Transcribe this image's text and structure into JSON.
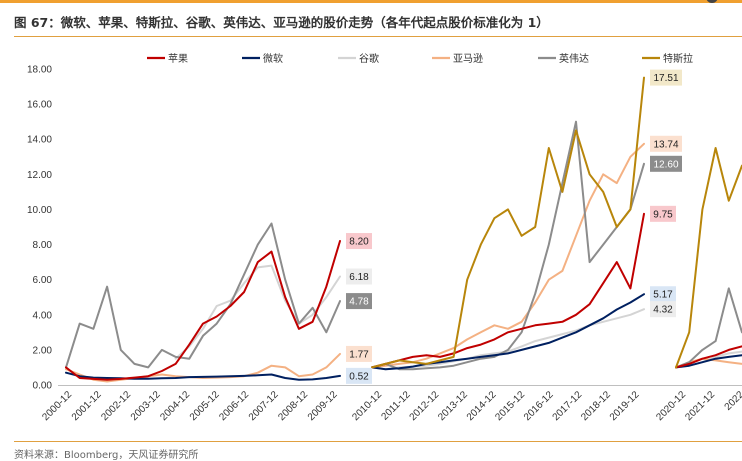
{
  "title": "图 67：微软、苹果、特斯拉、谷歌、英伟达、亚马逊的股价走势（各年代起点股价标准化为 1）",
  "source": "资料来源：Bloomberg，天风证券研究所",
  "colors": {
    "accent": "#f0a030",
    "苹果": "#c00000",
    "微软": "#002060",
    "谷歌": "#d4d4d4",
    "亚马逊": "#f4b183",
    "英伟达": "#8c8c8c",
    "特斯拉": "#b8860b"
  },
  "chart_data": {
    "type": "line",
    "title": "微软、苹果、特斯拉、谷歌、英伟达、亚马逊的股价走势（各年代起点股价标准化为 1）",
    "xlabel": "",
    "ylabel": "",
    "ylim": [
      0,
      18
    ],
    "y_ticks": [
      "18.00",
      "16.00",
      "14.00",
      "12.00",
      "10.00",
      "8.00",
      "6.00",
      "4.00",
      "2.00",
      "0.00"
    ],
    "grid": false,
    "legend_position": "top",
    "legend": [
      "苹果",
      "微软",
      "谷歌",
      "亚马逊",
      "英伟达",
      "特斯拉"
    ],
    "panels": [
      {
        "period": "2000s",
        "x_labels": [
          "2000-12",
          "2001-12",
          "2002-12",
          "2003-12",
          "2004-12",
          "2005-12",
          "2006-12",
          "2007-12",
          "2008-12",
          "2009-12"
        ],
        "series": [
          {
            "name": "苹果",
            "end_label": "8.20",
            "values": [
              1.0,
              0.4,
              0.35,
              0.3,
              0.35,
              0.42,
              0.5,
              0.8,
              1.2,
              2.3,
              3.5,
              3.9,
              4.5,
              5.3,
              7.0,
              7.6,
              5.0,
              3.2,
              3.6,
              5.6,
              8.2
            ]
          },
          {
            "name": "微软",
            "end_label": "0.52",
            "values": [
              0.7,
              0.5,
              0.42,
              0.4,
              0.38,
              0.36,
              0.36,
              0.38,
              0.4,
              0.45,
              0.46,
              0.48,
              0.5,
              0.52,
              0.55,
              0.6,
              0.4,
              0.3,
              0.32,
              0.4,
              0.52
            ]
          },
          {
            "name": "谷歌",
            "end_label": "6.18",
            "values": [
              null,
              null,
              null,
              null,
              null,
              null,
              null,
              null,
              1.5,
              2.2,
              3.2,
              4.5,
              4.8,
              5.8,
              6.7,
              6.8,
              4.8,
              3.5,
              4.0,
              5.0,
              6.18
            ]
          },
          {
            "name": "亚马逊",
            "end_label": "1.77",
            "values": [
              0.9,
              0.6,
              0.3,
              0.2,
              0.3,
              0.4,
              0.5,
              0.6,
              0.5,
              0.45,
              0.4,
              0.42,
              0.45,
              0.5,
              0.7,
              1.1,
              1.0,
              0.5,
              0.6,
              1.0,
              1.77
            ]
          },
          {
            "name": "英伟达",
            "end_label": "4.78",
            "values": [
              1.0,
              3.5,
              3.2,
              5.6,
              2.0,
              1.2,
              1.0,
              2.0,
              1.6,
              1.5,
              2.8,
              3.5,
              4.6,
              6.3,
              8.0,
              9.2,
              6.0,
              3.5,
              4.4,
              3.0,
              4.78
            ]
          }
        ]
      },
      {
        "period": "2010s",
        "x_labels": [
          "2010-12",
          "2011-12",
          "2012-12",
          "2013-12",
          "2014-12",
          "2015-12",
          "2016-12",
          "2017-12",
          "2018-12",
          "2019-12"
        ],
        "series": [
          {
            "name": "苹果",
            "end_label": "9.75",
            "values": [
              1.0,
              1.2,
              1.4,
              1.6,
              1.7,
              1.6,
              1.8,
              2.1,
              2.3,
              2.6,
              3.0,
              3.2,
              3.4,
              3.5,
              3.6,
              4.0,
              4.6,
              5.8,
              7.0,
              5.5,
              9.75
            ]
          },
          {
            "name": "微软",
            "end_label": "5.17",
            "values": [
              1.0,
              0.9,
              0.95,
              1.05,
              1.2,
              1.3,
              1.4,
              1.5,
              1.6,
              1.7,
              1.8,
              2.0,
              2.2,
              2.4,
              2.7,
              3.0,
              3.4,
              3.8,
              4.3,
              4.7,
              5.17
            ]
          },
          {
            "name": "谷歌",
            "end_label": "4.32",
            "values": [
              1.0,
              0.9,
              1.0,
              1.05,
              1.1,
              1.2,
              1.35,
              1.5,
              1.7,
              1.8,
              1.9,
              2.2,
              2.5,
              2.7,
              2.9,
              3.1,
              3.4,
              3.6,
              3.8,
              4.0,
              4.32
            ]
          },
          {
            "name": "亚马逊",
            "end_label": "13.74",
            "values": [
              1.0,
              1.1,
              1.2,
              1.3,
              1.5,
              1.8,
              2.1,
              2.6,
              3.0,
              3.4,
              3.2,
              3.6,
              4.7,
              6.0,
              6.5,
              8.5,
              10.5,
              12.0,
              11.5,
              13.0,
              13.74
            ]
          },
          {
            "name": "英伟达",
            "end_label": "12.60",
            "values": [
              1.0,
              1.2,
              0.9,
              0.9,
              0.95,
              1.0,
              1.1,
              1.3,
              1.5,
              1.6,
              2.0,
              3.0,
              5.2,
              8.0,
              11.5,
              15.0,
              7.0,
              8.0,
              9.0,
              10.0,
              12.6
            ]
          },
          {
            "name": "特斯拉",
            "end_label": "17.51",
            "values": [
              1.0,
              1.2,
              1.4,
              1.3,
              1.2,
              1.4,
              1.6,
              6.0,
              8.0,
              9.5,
              10.0,
              8.5,
              9.0,
              13.5,
              11.0,
              14.5,
              12.0,
              11.0,
              9.0,
              10.0,
              17.51
            ]
          }
        ]
      },
      {
        "period": "2020s",
        "x_labels": [
          "2020-12",
          "2021-12",
          "2022"
        ],
        "series": [
          {
            "name": "苹果",
            "values": [
              1.0,
              1.2,
              1.5,
              1.7,
              2.0,
              2.2
            ]
          },
          {
            "name": "微软",
            "values": [
              1.0,
              1.1,
              1.3,
              1.5,
              1.6,
              1.7
            ]
          },
          {
            "name": "谷歌",
            "values": [
              1.0,
              1.1,
              1.3,
              1.6,
              1.8,
              1.9
            ]
          },
          {
            "name": "亚马逊",
            "values": [
              1.0,
              1.3,
              1.5,
              1.4,
              1.3,
              1.2
            ]
          },
          {
            "name": "英伟达",
            "values": [
              1.0,
              1.3,
              2.0,
              2.5,
              5.5,
              3.0
            ]
          },
          {
            "name": "特斯拉",
            "values": [
              1.0,
              3.0,
              10.0,
              13.5,
              10.5,
              12.5
            ]
          }
        ]
      }
    ]
  }
}
